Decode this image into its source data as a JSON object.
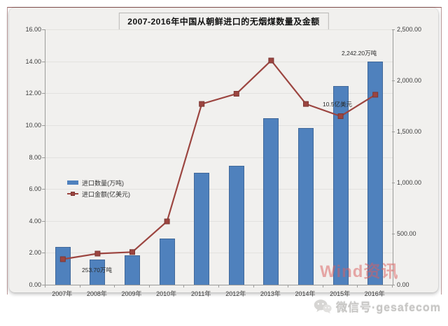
{
  "chart_data": {
    "type": "combo-bar-line",
    "title": "2007-2016年中国从朝鲜进口的无烟煤数量及金额",
    "categories": [
      "2007年",
      "2008年",
      "2009年",
      "2010年",
      "2011年",
      "2012年",
      "2013年",
      "2014年",
      "2015年",
      "2016年"
    ],
    "series": [
      {
        "name": "进口数量(万吨)",
        "type": "bar",
        "axis": "left",
        "color": "#4f81bd",
        "values": [
          2.35,
          1.6,
          1.85,
          2.9,
          7.0,
          7.45,
          10.45,
          9.8,
          12.45,
          14.0
        ]
      },
      {
        "name": "进口金额(亿美元)",
        "type": "line",
        "axis": "right",
        "color": "#9c4540",
        "values": [
          250,
          305,
          320,
          620,
          1770,
          1870,
          2195,
          1770,
          1650,
          1860
        ]
      }
    ],
    "left_axis": {
      "min": 0,
      "max": 16,
      "labels": [
        "0.00",
        "2.00",
        "4.00",
        "6.00",
        "8.00",
        "10.00",
        "12.00",
        "14.00",
        "16.00"
      ]
    },
    "right_axis": {
      "min": 0,
      "max": 2500,
      "labels": [
        "0.00",
        "500.00",
        "1,000.00",
        "1,500.00",
        "2,000.00",
        "2,500.00"
      ]
    },
    "grid": true,
    "legend_position": "inside-left",
    "annotations": [
      {
        "text": "253.70万吨",
        "x": 117,
        "y": 380
      },
      {
        "text": "2,242.20万吨",
        "x": 488,
        "y": 70
      },
      {
        "text": "10.5亿美元",
        "x": 461,
        "y": 143
      }
    ]
  },
  "watermark": {
    "text": "Wind资讯"
  },
  "footer": {
    "wechat_label": "微信号·gesafecom"
  }
}
